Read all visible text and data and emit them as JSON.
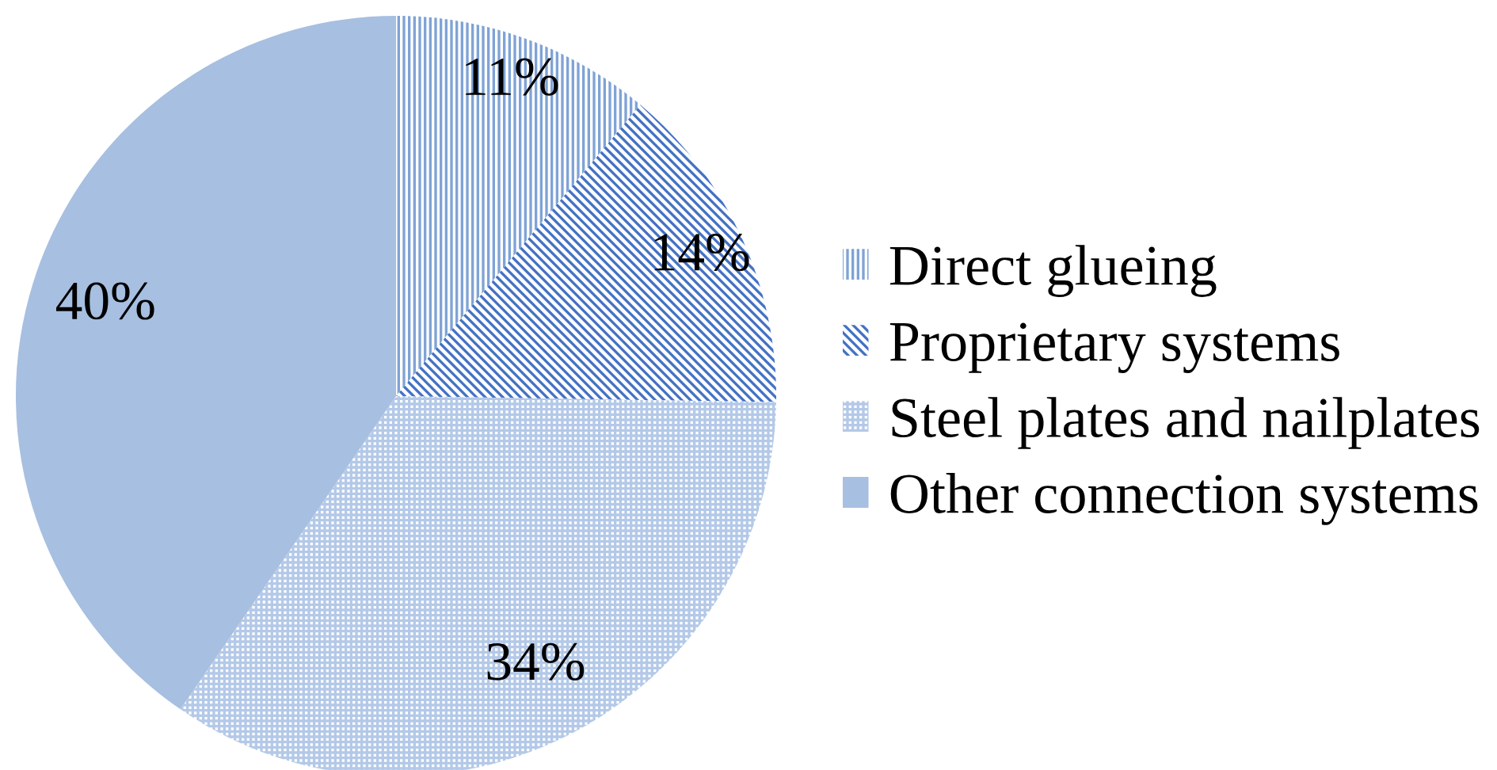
{
  "chart_data": {
    "type": "pie",
    "categories": [
      "Direct glueing",
      "Proprietary systems",
      "Steel plates and nailplates",
      "Other connection systems"
    ],
    "values": [
      11,
      14,
      34,
      40
    ],
    "colors": [
      "#7fa3d6",
      "#4472c4",
      "#b4c9e8",
      "#a7bfe0"
    ],
    "value_labels": [
      "11%",
      "14%",
      "34%",
      "40%"
    ],
    "legend": "right"
  }
}
